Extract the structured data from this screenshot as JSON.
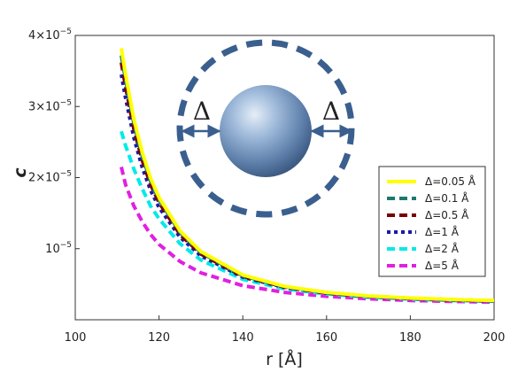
{
  "chart_data": {
    "type": "line",
    "xlabel": "r [Å]",
    "ylabel": "c",
    "xlim": [
      100,
      200
    ],
    "ylim": [
      0,
      4e-05
    ],
    "xticks": [
      {
        "value": 100,
        "label": "100"
      },
      {
        "value": 120,
        "label": "120"
      },
      {
        "value": 140,
        "label": "140"
      },
      {
        "value": 160,
        "label": "160"
      },
      {
        "value": 180,
        "label": "180"
      },
      {
        "value": 200,
        "label": "200"
      }
    ],
    "yticks": [
      {
        "value": 1e-05,
        "mantissa": "10",
        "exp": "−5"
      },
      {
        "value": 2e-05,
        "mantissa": "2×10",
        "exp": "−5"
      },
      {
        "value": 3e-05,
        "mantissa": "3×10",
        "exp": "−5"
      },
      {
        "value": 4e-05,
        "mantissa": "4×10",
        "exp": "−5"
      }
    ],
    "legend_position": "right",
    "grid": false,
    "inset": {
      "delta_symbol": "Δ",
      "sphere_color": "#7a9cc4",
      "ring_color": "#3a5f8f"
    },
    "series": [
      {
        "name": "Δ=0.05 Å",
        "color": "#ffff00",
        "dash": "solid",
        "x": [
          111,
          112,
          114,
          116,
          118,
          120,
          125,
          130,
          140,
          150,
          160,
          170,
          180,
          190,
          200
        ],
        "y": [
          3.82e-05,
          3.45e-05,
          2.82e-05,
          2.35e-05,
          1.99e-05,
          1.72e-05,
          1.25e-05,
          9.6e-06,
          6.3e-06,
          4.7e-06,
          3.85e-06,
          3.35e-06,
          3.05e-06,
          2.85e-06,
          2.7e-06
        ]
      },
      {
        "name": "Δ=0.1 Å",
        "color": "#1a7a6e",
        "dash": "dash",
        "x": [
          111,
          112,
          114,
          116,
          118,
          120,
          125,
          130,
          140,
          150,
          160,
          170,
          180,
          190,
          200
        ],
        "y": [
          3.72e-05,
          3.38e-05,
          2.76e-05,
          2.3e-05,
          1.95e-05,
          1.69e-05,
          1.23e-05,
          9.45e-06,
          6.2e-06,
          4.65e-06,
          3.82e-06,
          3.33e-06,
          3.03e-06,
          2.83e-06,
          2.68e-06
        ]
      },
      {
        "name": "Δ=0.5 Å",
        "color": "#7a0000",
        "dash": "dash",
        "x": [
          111,
          112,
          114,
          116,
          118,
          120,
          125,
          130,
          140,
          150,
          160,
          170,
          180,
          190,
          200
        ],
        "y": [
          3.62e-05,
          3.28e-05,
          2.68e-05,
          2.24e-05,
          1.9e-05,
          1.65e-05,
          1.2e-05,
          9.25e-06,
          6.1e-06,
          4.6e-06,
          3.78e-06,
          3.3e-06,
          3e-06,
          2.8e-06,
          2.66e-06
        ]
      },
      {
        "name": "Δ=1 Å",
        "color": "#1a1aaa",
        "dash": "dot",
        "x": [
          111,
          112,
          114,
          116,
          118,
          120,
          125,
          130,
          140,
          150,
          160,
          170,
          180,
          190,
          200
        ],
        "y": [
          3.45e-05,
          3.12e-05,
          2.56e-05,
          2.14e-05,
          1.82e-05,
          1.58e-05,
          1.16e-05,
          9e-06,
          6e-06,
          4.55e-06,
          3.75e-06,
          3.28e-06,
          2.98e-06,
          2.78e-06,
          2.64e-06
        ]
      },
      {
        "name": "Δ=2 Å",
        "color": "#00eaea",
        "dash": "dash",
        "x": [
          111,
          112,
          114,
          116,
          118,
          120,
          125,
          130,
          140,
          150,
          160,
          170,
          180,
          190,
          200
        ],
        "y": [
          2.65e-05,
          2.45e-05,
          2.12e-05,
          1.84e-05,
          1.6e-05,
          1.42e-05,
          1.07e-05,
          8.4e-06,
          5.7e-06,
          4.35e-06,
          3.62e-06,
          3.18e-06,
          2.9e-06,
          2.72e-06,
          2.6e-06
        ]
      },
      {
        "name": "Δ=5 Å",
        "color": "#e020e0",
        "dash": "dash",
        "x": [
          111,
          112,
          114,
          116,
          118,
          120,
          125,
          130,
          140,
          150,
          160,
          170,
          180,
          190,
          200
        ],
        "y": [
          2.15e-05,
          1.9e-05,
          1.6e-05,
          1.38e-05,
          1.2e-05,
          1.06e-05,
          8.2e-06,
          6.6e-06,
          4.8e-06,
          3.85e-06,
          3.3e-06,
          2.95e-06,
          2.72e-06,
          2.58e-06,
          2.48e-06
        ]
      }
    ]
  }
}
